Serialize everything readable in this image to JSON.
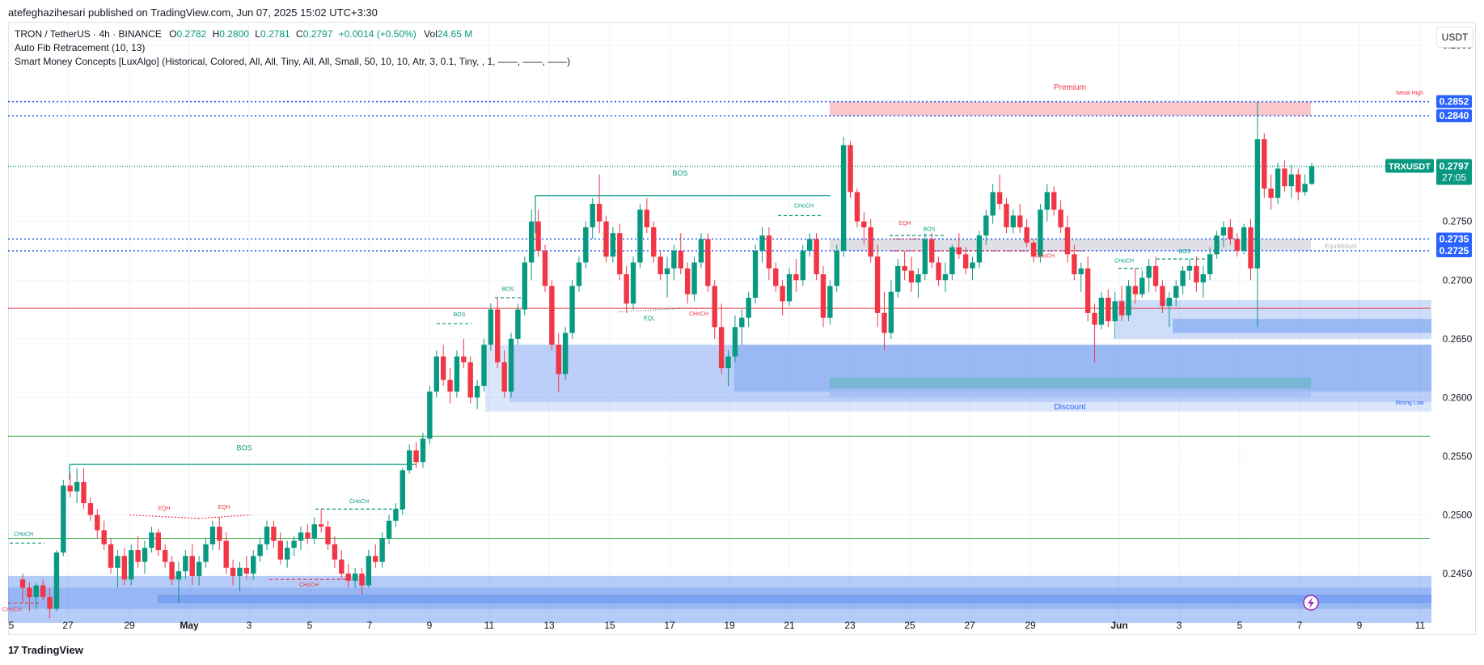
{
  "header": {
    "publish_line": "atefeghazihesari published on TradingView.com, Jun 07, 2025 15:02 UTC+3:30"
  },
  "legend": {
    "symbol": "TRON / TetherUS · 4h · BINANCE",
    "o_label": "O",
    "o_value": "0.2782",
    "h_label": "H",
    "h_value": "0.2800",
    "l_label": "L",
    "l_value": "0.2781",
    "c_label": "C",
    "c_value": "0.2797",
    "change": "+0.0014 (+0.50%)",
    "vol_label": "Vol",
    "vol_value": "24.65 M",
    "indicator_1": "Auto Fib Retracement (10, 13)",
    "indicator_2": "Smart Money Concepts [LuxAlgo] (Historical, Colored, All, All, Tiny, All, All, Small, 50, 10, 10, Atr, 3, 0.1, Tiny, , 1, ——, ——, ——)"
  },
  "quote_currency": "USDT",
  "footer": {
    "logo_mark": "17",
    "logo_text": "TradingView"
  },
  "colors": {
    "up": "#089981",
    "down": "#f23645",
    "grid": "#f0f3fa",
    "fib_blue": "#2962ff",
    "demand_zone": "#5b8def",
    "premium_zone": "#f7a1a9",
    "equilibrium_zone": "#c9ccd4",
    "fib_red": "#f23645",
    "fib_green": "#4caf50"
  },
  "chart_data": {
    "type": "candlestick",
    "symbol": "TRXUSDT",
    "timeframe": "4h",
    "ylim": [
      0.2408,
      0.292
    ],
    "y_ticks": [
      0.245,
      0.25,
      0.255,
      0.26,
      0.265,
      0.27,
      0.275,
      0.29
    ],
    "x_tick_labels": [
      "5",
      "27",
      "29",
      "May",
      "3",
      "5",
      "7",
      "9",
      "11",
      "13",
      "15",
      "17",
      "19",
      "21",
      "23",
      "25",
      "27",
      "29",
      "Jun",
      "3",
      "5",
      "7",
      "9",
      "11"
    ],
    "last_price": "0.2797",
    "countdown": "27:05",
    "price_labels": [
      "0.2852",
      "0.2840",
      "0.2735",
      "0.2725"
    ],
    "horizontal_levels": [
      {
        "price": 0.2852,
        "style": "dotted",
        "color": "#2962ff"
      },
      {
        "price": 0.284,
        "style": "dotted",
        "color": "#2962ff"
      },
      {
        "price": 0.2735,
        "style": "dotted",
        "color": "#2962ff"
      },
      {
        "price": 0.2725,
        "style": "dotted",
        "color": "#2962ff"
      },
      {
        "price": 0.2797,
        "style": "dotted",
        "color": "#089981"
      },
      {
        "price": 0.2676,
        "style": "solid",
        "color": "#f23645"
      },
      {
        "price": 0.2567,
        "style": "solid",
        "color": "#4caf50"
      },
      {
        "price": 0.248,
        "style": "solid",
        "color": "#4caf50"
      }
    ],
    "annotations": [
      "BOS",
      "BOS",
      "BOS",
      "BOS",
      "BOS",
      "BOS",
      "CHoCH",
      "CHoCH",
      "CHoCH",
      "CHoCH",
      "CHoCH",
      "CHoCH",
      "CHoCH",
      "CHoCH",
      "EQH",
      "EQH",
      "EQH",
      "EQL",
      "Premium",
      "Discount",
      "Equilibrium",
      "Weak High",
      "Strong Low"
    ],
    "candles_approx": [
      [
        0.2445,
        0.245,
        0.2425,
        0.2438
      ],
      [
        0.2438,
        0.2443,
        0.2418,
        0.243
      ],
      [
        0.243,
        0.2442,
        0.242,
        0.244
      ],
      [
        0.244,
        0.2445,
        0.2427,
        0.243
      ],
      [
        0.243,
        0.2438,
        0.2412,
        0.242
      ],
      [
        0.242,
        0.247,
        0.2418,
        0.2468
      ],
      [
        0.2468,
        0.253,
        0.2465,
        0.2525
      ],
      [
        0.2525,
        0.2535,
        0.2515,
        0.252
      ],
      [
        0.252,
        0.254,
        0.251,
        0.2528
      ],
      [
        0.2528,
        0.254,
        0.2505,
        0.251
      ],
      [
        0.251,
        0.2515,
        0.2495,
        0.25
      ],
      [
        0.25,
        0.2505,
        0.248,
        0.2487
      ],
      [
        0.2487,
        0.2495,
        0.247,
        0.2475
      ],
      [
        0.2475,
        0.248,
        0.245,
        0.2455
      ],
      [
        0.2455,
        0.247,
        0.2438,
        0.2465
      ],
      [
        0.2465,
        0.2472,
        0.244,
        0.2445
      ],
      [
        0.2445,
        0.2475,
        0.244,
        0.247
      ],
      [
        0.247,
        0.2482,
        0.2455,
        0.246
      ],
      [
        0.246,
        0.2478,
        0.245,
        0.2472
      ],
      [
        0.2472,
        0.249,
        0.2468,
        0.2485
      ],
      [
        0.2485,
        0.2488,
        0.2465,
        0.247
      ],
      [
        0.247,
        0.2475,
        0.2455,
        0.246
      ],
      [
        0.246,
        0.2465,
        0.244,
        0.2445
      ],
      [
        0.2445,
        0.246,
        0.2425,
        0.2452
      ],
      [
        0.2452,
        0.247,
        0.2445,
        0.2465
      ],
      [
        0.2465,
        0.2475,
        0.244,
        0.2448
      ],
      [
        0.2448,
        0.2465,
        0.244,
        0.246
      ],
      [
        0.246,
        0.248,
        0.2455,
        0.2475
      ],
      [
        0.2475,
        0.2495,
        0.247,
        0.249
      ],
      [
        0.249,
        0.2498,
        0.247,
        0.2478
      ],
      [
        0.2478,
        0.2485,
        0.245,
        0.2455
      ],
      [
        0.2455,
        0.2462,
        0.244,
        0.2448
      ],
      [
        0.2448,
        0.246,
        0.2435,
        0.2455
      ],
      [
        0.2455,
        0.2465,
        0.2445,
        0.245
      ],
      [
        0.245,
        0.247,
        0.2445,
        0.2465
      ],
      [
        0.2465,
        0.248,
        0.246,
        0.2475
      ],
      [
        0.2475,
        0.2495,
        0.247,
        0.249
      ],
      [
        0.249,
        0.2495,
        0.2472,
        0.2478
      ],
      [
        0.2478,
        0.2485,
        0.2458,
        0.2462
      ],
      [
        0.2462,
        0.2478,
        0.2455,
        0.2472
      ],
      [
        0.2472,
        0.2482,
        0.2465,
        0.2478
      ],
      [
        0.2478,
        0.249,
        0.247,
        0.2485
      ],
      [
        0.2485,
        0.2492,
        0.2475,
        0.248
      ],
      [
        0.248,
        0.2498,
        0.2475,
        0.2492
      ],
      [
        0.2492,
        0.2505,
        0.2485,
        0.249
      ],
      [
        0.249,
        0.2495,
        0.247,
        0.2475
      ],
      [
        0.2475,
        0.2482,
        0.2455,
        0.2462
      ],
      [
        0.2462,
        0.247,
        0.2445,
        0.245
      ],
      [
        0.245,
        0.2458,
        0.2438,
        0.2444
      ],
      [
        0.2444,
        0.2455,
        0.2438,
        0.245
      ],
      [
        0.245,
        0.2455,
        0.2432,
        0.244
      ],
      [
        0.244,
        0.247,
        0.2438,
        0.2465
      ],
      [
        0.2465,
        0.2475,
        0.2455,
        0.246
      ],
      [
        0.246,
        0.2485,
        0.2455,
        0.248
      ],
      [
        0.248,
        0.25,
        0.2475,
        0.2495
      ],
      [
        0.2495,
        0.251,
        0.249,
        0.2505
      ],
      [
        0.2505,
        0.254,
        0.25,
        0.2538
      ],
      [
        0.2538,
        0.256,
        0.2535,
        0.2555
      ],
      [
        0.2555,
        0.2562,
        0.254,
        0.2545
      ],
      [
        0.2545,
        0.257,
        0.254,
        0.2565
      ],
      [
        0.2565,
        0.261,
        0.256,
        0.2605
      ],
      [
        0.2605,
        0.264,
        0.26,
        0.2635
      ],
      [
        0.2635,
        0.2645,
        0.261,
        0.2615
      ],
      [
        0.2615,
        0.2625,
        0.2595,
        0.2605
      ],
      [
        0.2605,
        0.264,
        0.26,
        0.2635
      ],
      [
        0.2635,
        0.265,
        0.2625,
        0.263
      ],
      [
        0.263,
        0.2635,
        0.2595,
        0.26
      ],
      [
        0.26,
        0.2615,
        0.259,
        0.261
      ],
      [
        0.261,
        0.265,
        0.2605,
        0.2645
      ],
      [
        0.2645,
        0.268,
        0.264,
        0.2675
      ],
      [
        0.2675,
        0.2685,
        0.2625,
        0.263
      ],
      [
        0.263,
        0.264,
        0.26,
        0.2605
      ],
      [
        0.2605,
        0.2655,
        0.26,
        0.265
      ],
      [
        0.265,
        0.268,
        0.2645,
        0.2675
      ],
      [
        0.2675,
        0.272,
        0.267,
        0.2715
      ],
      [
        0.2715,
        0.276,
        0.27,
        0.275
      ],
      [
        0.275,
        0.276,
        0.272,
        0.2725
      ],
      [
        0.2725,
        0.273,
        0.269,
        0.2695
      ],
      [
        0.2695,
        0.27,
        0.264,
        0.2645
      ],
      [
        0.2645,
        0.2655,
        0.2605,
        0.262
      ],
      [
        0.262,
        0.266,
        0.2615,
        0.2655
      ],
      [
        0.2655,
        0.27,
        0.265,
        0.2695
      ],
      [
        0.2695,
        0.272,
        0.269,
        0.2715
      ],
      [
        0.2715,
        0.275,
        0.271,
        0.2745
      ],
      [
        0.2745,
        0.277,
        0.2735,
        0.2765
      ],
      [
        0.2765,
        0.279,
        0.274,
        0.275
      ],
      [
        0.275,
        0.2755,
        0.2715,
        0.272
      ],
      [
        0.272,
        0.2745,
        0.2715,
        0.274
      ],
      [
        0.274,
        0.2748,
        0.27,
        0.2705
      ],
      [
        0.2705,
        0.2712,
        0.2672,
        0.268
      ],
      [
        0.268,
        0.272,
        0.2675,
        0.2715
      ],
      [
        0.2715,
        0.2765,
        0.271,
        0.276
      ],
      [
        0.276,
        0.277,
        0.274,
        0.2745
      ],
      [
        0.2745,
        0.275,
        0.2715,
        0.272
      ],
      [
        0.272,
        0.2725,
        0.27,
        0.2705
      ],
      [
        0.2705,
        0.272,
        0.2685,
        0.271
      ],
      [
        0.271,
        0.273,
        0.27,
        0.2725
      ],
      [
        0.2725,
        0.274,
        0.2705,
        0.271
      ],
      [
        0.271,
        0.2715,
        0.268,
        0.2688
      ],
      [
        0.2688,
        0.272,
        0.2682,
        0.2715
      ],
      [
        0.2715,
        0.274,
        0.271,
        0.2735
      ],
      [
        0.2735,
        0.274,
        0.269,
        0.2695
      ],
      [
        0.2695,
        0.27,
        0.265,
        0.266
      ],
      [
        0.266,
        0.268,
        0.262,
        0.2625
      ],
      [
        0.2625,
        0.264,
        0.261,
        0.2635
      ],
      [
        0.2635,
        0.267,
        0.263,
        0.266
      ],
      [
        0.266,
        0.2675,
        0.2645,
        0.2668
      ],
      [
        0.2668,
        0.269,
        0.266,
        0.2685
      ],
      [
        0.2685,
        0.273,
        0.268,
        0.2725
      ],
      [
        0.2725,
        0.2745,
        0.2715,
        0.2738
      ],
      [
        0.2738,
        0.2745,
        0.27,
        0.271
      ],
      [
        0.271,
        0.2715,
        0.269,
        0.2695
      ],
      [
        0.2695,
        0.27,
        0.267,
        0.2682
      ],
      [
        0.2682,
        0.271,
        0.2678,
        0.2705
      ],
      [
        0.2705,
        0.2718,
        0.269,
        0.27
      ],
      [
        0.27,
        0.273,
        0.2695,
        0.2725
      ],
      [
        0.2725,
        0.274,
        0.272,
        0.2735
      ],
      [
        0.2735,
        0.274,
        0.27,
        0.2705
      ],
      [
        0.2705,
        0.2712,
        0.266,
        0.2668
      ],
      [
        0.2668,
        0.27,
        0.2662,
        0.2695
      ],
      [
        0.2695,
        0.273,
        0.269,
        0.2725
      ],
      [
        0.2725,
        0.2822,
        0.272,
        0.2815
      ],
      [
        0.2815,
        0.2818,
        0.277,
        0.2775
      ],
      [
        0.2775,
        0.2778,
        0.2745,
        0.275
      ],
      [
        0.275,
        0.2758,
        0.273,
        0.2745
      ],
      [
        0.2745,
        0.2752,
        0.2715,
        0.272
      ],
      [
        0.272,
        0.273,
        0.266,
        0.2672
      ],
      [
        0.2672,
        0.269,
        0.264,
        0.2655
      ],
      [
        0.2655,
        0.27,
        0.265,
        0.269
      ],
      [
        0.269,
        0.2718,
        0.2685,
        0.2712
      ],
      [
        0.2712,
        0.2725,
        0.27,
        0.2708
      ],
      [
        0.2708,
        0.272,
        0.269,
        0.2698
      ],
      [
        0.2698,
        0.271,
        0.2685,
        0.2705
      ],
      [
        0.2705,
        0.274,
        0.27,
        0.2735
      ],
      [
        0.2735,
        0.274,
        0.271,
        0.2715
      ],
      [
        0.2715,
        0.272,
        0.2695,
        0.27
      ],
      [
        0.27,
        0.2715,
        0.269,
        0.2705
      ],
      [
        0.2705,
        0.273,
        0.27,
        0.2728
      ],
      [
        0.2728,
        0.274,
        0.2718,
        0.2722
      ],
      [
        0.2722,
        0.2728,
        0.2705,
        0.271
      ],
      [
        0.271,
        0.272,
        0.27,
        0.2715
      ],
      [
        0.2715,
        0.2742,
        0.271,
        0.2738
      ],
      [
        0.2738,
        0.276,
        0.273,
        0.2755
      ],
      [
        0.2755,
        0.2782,
        0.2748,
        0.2775
      ],
      [
        0.2775,
        0.279,
        0.276,
        0.2765
      ],
      [
        0.2765,
        0.277,
        0.274,
        0.2745
      ],
      [
        0.2745,
        0.276,
        0.274,
        0.2755
      ],
      [
        0.2755,
        0.2765,
        0.274,
        0.2745
      ],
      [
        0.2745,
        0.2752,
        0.2728,
        0.2732
      ],
      [
        0.2732,
        0.2735,
        0.2715,
        0.272
      ],
      [
        0.272,
        0.2765,
        0.2715,
        0.276
      ],
      [
        0.276,
        0.2782,
        0.275,
        0.2775
      ],
      [
        0.2775,
        0.278,
        0.2755,
        0.276
      ],
      [
        0.276,
        0.2768,
        0.274,
        0.2745
      ],
      [
        0.2745,
        0.2755,
        0.2715,
        0.2722
      ],
      [
        0.2722,
        0.273,
        0.27,
        0.2705
      ],
      [
        0.2705,
        0.2715,
        0.269,
        0.271
      ],
      [
        0.271,
        0.272,
        0.2665,
        0.2672
      ],
      [
        0.2672,
        0.268,
        0.263,
        0.2662
      ],
      [
        0.2662,
        0.269,
        0.2658,
        0.2685
      ],
      [
        0.2685,
        0.2692,
        0.266,
        0.2665
      ],
      [
        0.2665,
        0.269,
        0.265,
        0.2682
      ],
      [
        0.2682,
        0.2695,
        0.2665,
        0.267
      ],
      [
        0.267,
        0.27,
        0.2665,
        0.2695
      ],
      [
        0.2695,
        0.271,
        0.268,
        0.2688
      ],
      [
        0.2688,
        0.2708,
        0.2685,
        0.2702
      ],
      [
        0.2702,
        0.2718,
        0.269,
        0.2712
      ],
      [
        0.2712,
        0.272,
        0.269,
        0.2695
      ],
      [
        0.2695,
        0.27,
        0.2672,
        0.2678
      ],
      [
        0.2678,
        0.269,
        0.266,
        0.2685
      ],
      [
        0.2685,
        0.27,
        0.2678,
        0.2695
      ],
      [
        0.2695,
        0.2712,
        0.2688,
        0.2708
      ],
      [
        0.2708,
        0.2718,
        0.27,
        0.2712
      ],
      [
        0.2712,
        0.272,
        0.269,
        0.2698
      ],
      [
        0.2698,
        0.2712,
        0.2685,
        0.2705
      ],
      [
        0.2705,
        0.2728,
        0.27,
        0.2722
      ],
      [
        0.2722,
        0.2742,
        0.2718,
        0.2738
      ],
      [
        0.2738,
        0.275,
        0.2728,
        0.2745
      ],
      [
        0.2745,
        0.2752,
        0.273,
        0.2735
      ],
      [
        0.2735,
        0.274,
        0.272,
        0.2725
      ],
      [
        0.2725,
        0.2748,
        0.2722,
        0.2745
      ],
      [
        0.2745,
        0.2752,
        0.27,
        0.271
      ],
      [
        0.271,
        0.2852,
        0.266,
        0.282
      ],
      [
        0.282,
        0.2825,
        0.277,
        0.2778
      ],
      [
        0.2778,
        0.279,
        0.276,
        0.277
      ],
      [
        0.277,
        0.28,
        0.2765,
        0.2795
      ],
      [
        0.2795,
        0.2802,
        0.2775,
        0.278
      ],
      [
        0.278,
        0.2798,
        0.277,
        0.279
      ],
      [
        0.279,
        0.2795,
        0.2768,
        0.2775
      ],
      [
        0.2775,
        0.279,
        0.2772,
        0.2782
      ],
      [
        0.2782,
        0.28,
        0.2781,
        0.2797
      ]
    ]
  },
  "labels": {
    "bos": "BOS",
    "choch": "CHoCH",
    "eqh": "EQH",
    "eql": "EQL",
    "premium": "Premium",
    "discount": "Discount",
    "equilibrium": "Equilibrium",
    "weak_high": "Weak High",
    "strong_low": "Strong Low"
  }
}
